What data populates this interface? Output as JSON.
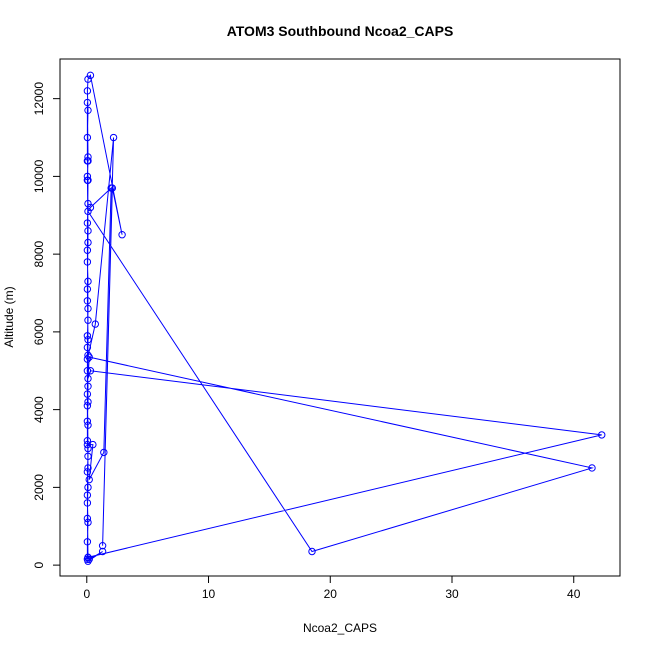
{
  "chart_data": {
    "type": "line",
    "title": "ATOM3 Southbound Ncoa2_CAPS",
    "xlabel": "Ncoa2_CAPS",
    "ylabel": "Altitude (m)",
    "xlim": [
      -2.2,
      43.8
    ],
    "ylim": [
      -280,
      13020
    ],
    "x_ticks": [
      0,
      10,
      20,
      30,
      40
    ],
    "y_ticks": [
      0,
      2000,
      4000,
      6000,
      8000,
      10000,
      12000
    ],
    "grid": false,
    "color": "#0000ff",
    "series": [
      {
        "points": [
          [
            0.05,
            150
          ],
          [
            0.05,
            600
          ],
          [
            0.1,
            1100
          ],
          [
            0.05,
            1600
          ],
          [
            0.1,
            2000
          ],
          [
            0.05,
            2400
          ],
          [
            0.1,
            2800
          ],
          [
            0.05,
            3200
          ],
          [
            0.1,
            3600
          ],
          [
            0.05,
            4100
          ],
          [
            0.1,
            4600
          ],
          [
            0.05,
            5000
          ],
          [
            0.1,
            5400
          ],
          [
            0.05,
            5900
          ],
          [
            0.1,
            6300
          ],
          [
            0.05,
            6800
          ],
          [
            0.1,
            7300
          ],
          [
            0.05,
            7800
          ],
          [
            0.1,
            8300
          ],
          [
            0.05,
            8800
          ],
          [
            0.1,
            9300
          ],
          [
            0.05,
            9900
          ],
          [
            0.1,
            10400
          ],
          [
            0.05,
            11000
          ],
          [
            0.1,
            11700
          ],
          [
            0.05,
            12200
          ],
          [
            0.1,
            12500
          ],
          [
            0.3,
            12600
          ],
          [
            2.9,
            8500
          ],
          [
            2.1,
            9700
          ],
          [
            1.3,
            500
          ],
          [
            2.2,
            11000
          ],
          [
            0.7,
            6200
          ],
          [
            0.05,
            5300
          ],
          [
            0.05,
            3100
          ],
          [
            0.5,
            3100
          ],
          [
            0.2,
            2200
          ],
          [
            1.4,
            2900
          ],
          [
            2.0,
            9700
          ],
          [
            0.3,
            9200
          ],
          [
            0.1,
            9100
          ],
          [
            18.5,
            350
          ],
          [
            41.5,
            2500
          ],
          [
            0.2,
            5350
          ],
          [
            0.1,
            4800
          ],
          [
            0.3,
            5000
          ],
          [
            42.3,
            3350
          ],
          [
            0.1,
            200
          ],
          [
            0.2,
            150
          ],
          [
            1.3,
            350
          ],
          [
            0.1,
            100
          ],
          [
            0.05,
            1800
          ],
          [
            0.1,
            3000
          ],
          [
            0.05,
            4400
          ],
          [
            0.1,
            5800
          ],
          [
            0.05,
            7100
          ],
          [
            0.1,
            8600
          ],
          [
            0.05,
            10000
          ],
          [
            0.1,
            10500
          ],
          [
            0.05,
            11900
          ],
          [
            0.05,
            10400
          ],
          [
            0.1,
            9900
          ],
          [
            0.05,
            8100
          ],
          [
            0.1,
            6600
          ],
          [
            0.05,
            5600
          ],
          [
            0.1,
            4200
          ],
          [
            0.05,
            3700
          ],
          [
            0.1,
            2500
          ],
          [
            0.05,
            1200
          ],
          [
            0.1,
            200
          ]
        ]
      }
    ]
  }
}
